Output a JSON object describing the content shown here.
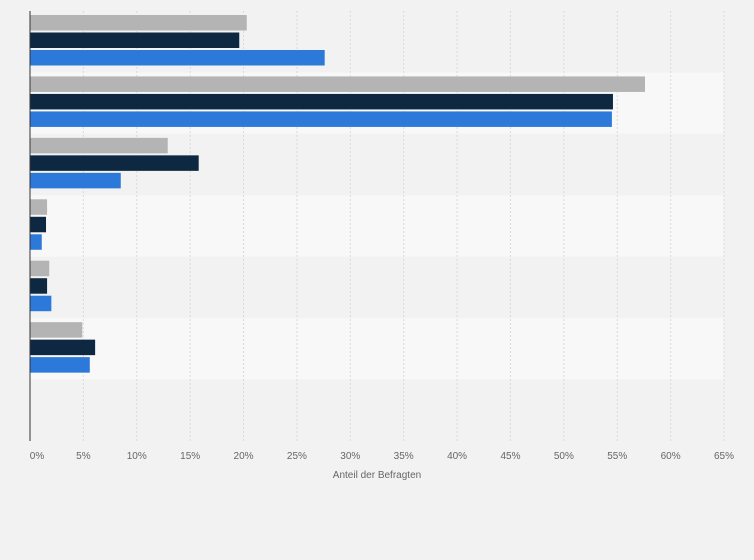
{
  "chart_data": {
    "type": "bar",
    "orientation": "horizontal",
    "categories": [
      "",
      "",
      "",
      "",
      "",
      "",
      ""
    ],
    "series": [
      {
        "values": [
          20.3,
          57.6,
          12.9,
          1.6,
          1.8,
          4.9,
          0
        ],
        "color": "#b4b4b4"
      },
      {
        "values": [
          19.6,
          54.6,
          15.8,
          1.5,
          1.6,
          6.1,
          0
        ],
        "color": "#0e2841"
      },
      {
        "values": [
          27.6,
          54.5,
          8.5,
          1.1,
          2.0,
          5.6,
          0
        ],
        "color": "#2d79d9"
      }
    ],
    "xlim": [
      0,
      65
    ],
    "x_ticks": [
      0,
      5,
      10,
      15,
      20,
      25,
      30,
      35,
      40,
      45,
      50,
      55,
      60,
      65
    ],
    "x_tick_labels": [
      "0%",
      "5%",
      "10%",
      "15%",
      "20%",
      "25%",
      "30%",
      "35%",
      "40%",
      "45%",
      "50%",
      "55%",
      "60%",
      "65%"
    ],
    "xlabel": "Anteil der Befragten",
    "ylabel": "",
    "title": "",
    "grid": true,
    "legend": "none"
  }
}
